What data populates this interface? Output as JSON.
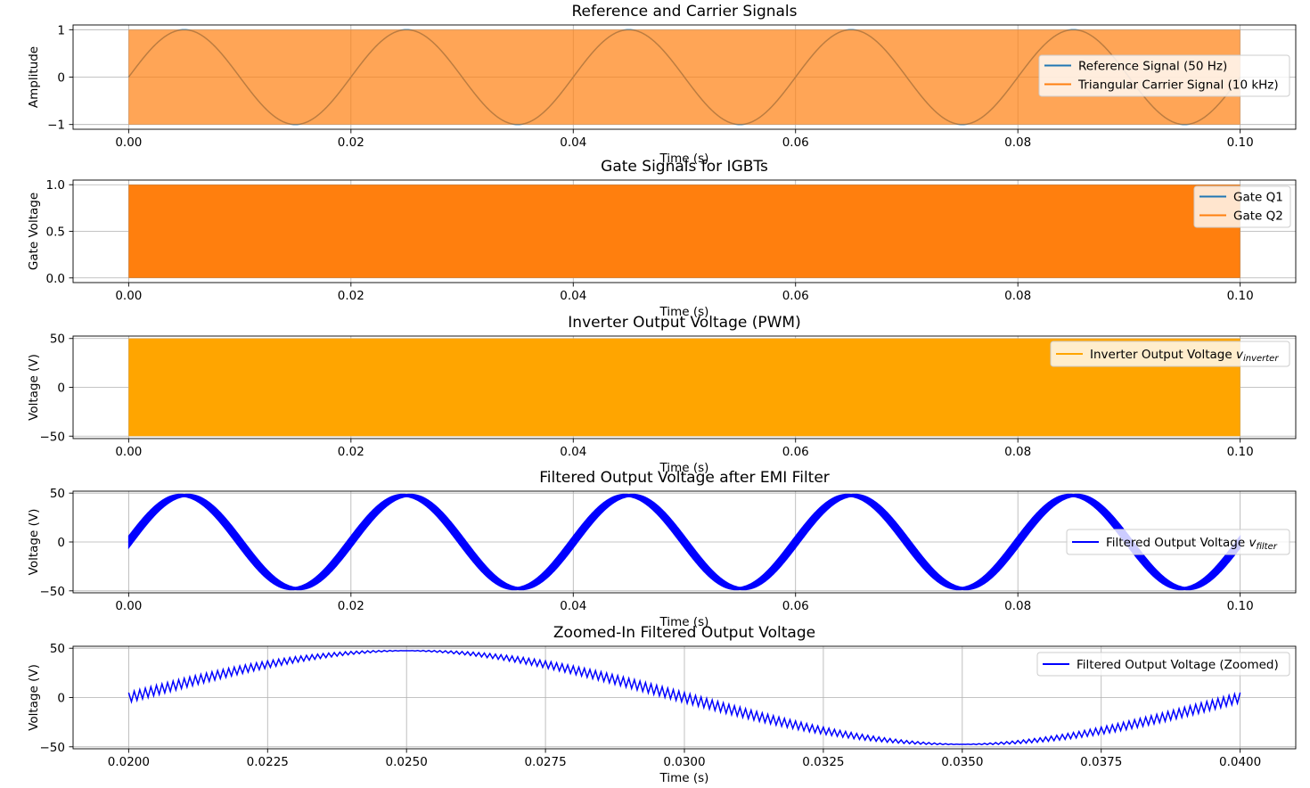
{
  "figure": {
    "background": "#ffffff"
  },
  "chart_data": [
    {
      "type": "line",
      "title": "Reference and Carrier Signals",
      "xlabel": "Time (s)",
      "ylabel": "Amplitude",
      "xlim": [
        -0.005,
        0.105
      ],
      "ylim": [
        -1.1,
        1.1
      ],
      "xticks": [
        0.0,
        0.02,
        0.04,
        0.06,
        0.08,
        0.1
      ],
      "xtick_labels": [
        "0.00",
        "0.02",
        "0.04",
        "0.06",
        "0.08",
        "0.10"
      ],
      "yticks": [
        -1,
        0,
        1
      ],
      "ytick_labels": [
        "−1",
        "0",
        "1"
      ],
      "grid": true,
      "legend_position": "center-right",
      "series": [
        {
          "name": "Reference Signal (50 Hz)",
          "kind": "sine",
          "amplitude": 1,
          "frequency_hz": 50,
          "t_start": 0,
          "t_end": 0.1,
          "color": "#1f77b4"
        },
        {
          "name": "Triangular Carrier Signal (10 kHz)",
          "kind": "dense_band",
          "ymin": -1,
          "ymax": 1,
          "frequency_hz": 10000,
          "t_start": 0,
          "t_end": 0.1,
          "color": "#ff7f0e",
          "opacity": 0.7
        }
      ]
    },
    {
      "type": "line",
      "title": "Gate Signals for IGBTs",
      "xlabel": "Time (s)",
      "ylabel": "Gate Voltage",
      "xlim": [
        -0.005,
        0.105
      ],
      "ylim": [
        -0.05,
        1.05
      ],
      "xticks": [
        0.0,
        0.02,
        0.04,
        0.06,
        0.08,
        0.1
      ],
      "xtick_labels": [
        "0.00",
        "0.02",
        "0.04",
        "0.06",
        "0.08",
        "0.10"
      ],
      "yticks": [
        0,
        0.5,
        1
      ],
      "ytick_labels": [
        "0.0",
        "0.5",
        "1.0"
      ],
      "grid": true,
      "legend_position": "upper-right",
      "series": [
        {
          "name": "Gate Q1",
          "kind": "dense_band",
          "ymin": 0,
          "ymax": 1,
          "t_start": 0,
          "t_end": 0.1,
          "color": "#1f77b4"
        },
        {
          "name": "Gate Q2",
          "kind": "dense_band",
          "ymin": 0,
          "ymax": 1,
          "t_start": 0,
          "t_end": 0.1,
          "color": "#ff7f0e"
        }
      ]
    },
    {
      "type": "line",
      "title": "Inverter Output Voltage (PWM)",
      "xlabel": "Time (s)",
      "ylabel": "Voltage (V)",
      "xlim": [
        -0.005,
        0.105
      ],
      "ylim": [
        -52.5,
        52.5
      ],
      "xticks": [
        0.0,
        0.02,
        0.04,
        0.06,
        0.08,
        0.1
      ],
      "xtick_labels": [
        "0.00",
        "0.02",
        "0.04",
        "0.06",
        "0.08",
        "0.10"
      ],
      "yticks": [
        -50,
        0,
        50
      ],
      "ytick_labels": [
        "−50",
        "0",
        "50"
      ],
      "grid": true,
      "legend_position": "upper-right",
      "series": [
        {
          "name": "Inverter Output Voltage",
          "name_subscript": "inverter",
          "name_var": "v",
          "kind": "dense_band",
          "ymin": -50,
          "ymax": 50,
          "t_start": 0,
          "t_end": 0.1,
          "color": "#ffa500"
        }
      ]
    },
    {
      "type": "line",
      "title": "Filtered Output Voltage after EMI Filter",
      "xlabel": "Time (s)",
      "ylabel": "Voltage (V)",
      "xlim": [
        -0.005,
        0.105
      ],
      "ylim": [
        -52,
        52
      ],
      "xticks": [
        0.0,
        0.02,
        0.04,
        0.06,
        0.08,
        0.1
      ],
      "xtick_labels": [
        "0.00",
        "0.02",
        "0.04",
        "0.06",
        "0.08",
        "0.10"
      ],
      "yticks": [
        -50,
        0,
        50
      ],
      "ytick_labels": [
        "−50",
        "0",
        "50"
      ],
      "grid": true,
      "legend_position": "center-right",
      "series": [
        {
          "name": "Filtered Output Voltage",
          "name_subscript": "filter",
          "name_var": "v",
          "kind": "sine_band",
          "amplitude": 47.5,
          "frequency_hz": 50,
          "ripple_max": 5,
          "t_start": 0,
          "t_end": 0.1,
          "color": "#0000ff"
        }
      ]
    },
    {
      "type": "line",
      "title": "Zoomed-In Filtered Output Voltage",
      "xlabel": "Time (s)",
      "ylabel": "Voltage (V)",
      "xlim": [
        0.019,
        0.041
      ],
      "ylim": [
        -52,
        52
      ],
      "xticks": [
        0.02,
        0.0225,
        0.025,
        0.0275,
        0.03,
        0.0325,
        0.035,
        0.0375,
        0.04
      ],
      "xtick_labels": [
        "0.0200",
        "0.0225",
        "0.0250",
        "0.0275",
        "0.0300",
        "0.0325",
        "0.0350",
        "0.0375",
        "0.0400"
      ],
      "yticks": [
        -50,
        0,
        50
      ],
      "ytick_labels": [
        "−50",
        "0",
        "50"
      ],
      "grid": true,
      "legend_position": "upper-right",
      "series": [
        {
          "name": "Filtered Output Voltage (Zoomed)",
          "kind": "sine_ripple",
          "amplitude": 47.5,
          "frequency_hz": 50,
          "ripple_max": 5,
          "ripple_frequency_hz": 10000,
          "t_start": 0.02,
          "t_end": 0.04,
          "color": "#0000ff"
        }
      ]
    }
  ]
}
